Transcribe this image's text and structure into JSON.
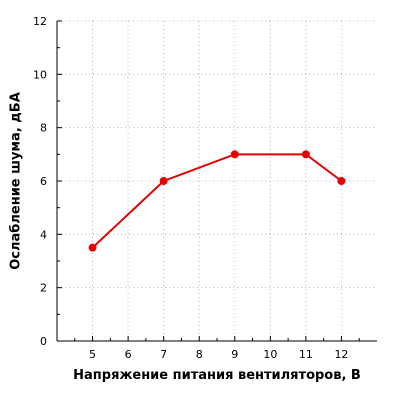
{
  "chart_data": {
    "type": "line",
    "xlabel": "Напряжение питания вентиляторов, В",
    "ylabel": "Ослабление шума, дБА",
    "xlim": [
      4,
      13
    ],
    "ylim": [
      0,
      12
    ],
    "xticks": [
      5,
      6,
      7,
      8,
      9,
      10,
      11,
      12
    ],
    "yticks": [
      0,
      2,
      4,
      6,
      8,
      10,
      12
    ],
    "x_minor_ticks": [
      4.5,
      5.5,
      6.5,
      7.5,
      8.5,
      9.5,
      10.5,
      11.5,
      12.5
    ],
    "y_minor_ticks": [
      1,
      3,
      5,
      7,
      9,
      11
    ],
    "grid": true,
    "legend": "none",
    "series": [
      {
        "color": "#e60000",
        "x": [
          5,
          7,
          9,
          11,
          12
        ],
        "y": [
          3.5,
          6,
          7,
          7,
          6
        ]
      }
    ]
  }
}
